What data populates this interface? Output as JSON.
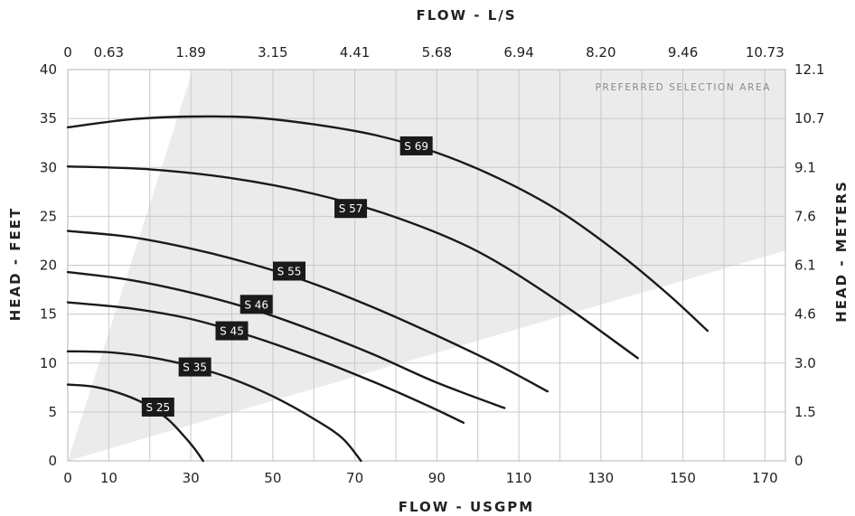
{
  "chart_data": {
    "type": "line",
    "title": "",
    "x_axis_bottom": {
      "label": "FLOW - USGPM",
      "range": [
        0,
        175
      ],
      "tick_values": [
        0,
        10,
        30,
        50,
        70,
        90,
        110,
        130,
        150,
        170
      ],
      "tick_labels": [
        "0",
        "10",
        "30",
        "50",
        "70",
        "90",
        "110",
        "130",
        "150",
        "170"
      ]
    },
    "x_axis_top": {
      "label": "FLOW - L/S",
      "tick_labels": [
        "0",
        "0.63",
        "1.89",
        "3.15",
        "4.41",
        "5.68",
        "6.94",
        "8.20",
        "9.46",
        "10.73"
      ]
    },
    "y_axis_left": {
      "label": "HEAD - FEET",
      "range": [
        0,
        40
      ],
      "tick_values": [
        0,
        5,
        10,
        15,
        20,
        25,
        30,
        35,
        40
      ],
      "tick_labels": [
        "0",
        "5",
        "10",
        "15",
        "20",
        "25",
        "30",
        "35",
        "40"
      ]
    },
    "y_axis_right": {
      "label": "HEAD - METERS",
      "tick_labels": [
        "0",
        "1.5",
        "3.0",
        "4.6",
        "6.1",
        "7.6",
        "9.1",
        "10.7",
        "12.1"
      ]
    },
    "grid": true,
    "region": {
      "label": "PREFERRED SELECTION AREA",
      "color": "#ebebeb",
      "polygon": [
        [
          0,
          0
        ],
        [
          30.5,
          40
        ],
        [
          175,
          40
        ],
        [
          175,
          21.5
        ]
      ]
    },
    "series": [
      {
        "name": "S 25",
        "label_at": [
          22,
          5.5
        ],
        "points": [
          [
            0,
            7.8
          ],
          [
            6,
            7.6
          ],
          [
            12,
            7
          ],
          [
            18,
            6
          ],
          [
            24,
            4.4
          ],
          [
            28,
            2.7
          ],
          [
            31,
            1.2
          ],
          [
            33,
            0
          ]
        ]
      },
      {
        "name": "S 35",
        "label_at": [
          31,
          9.6
        ],
        "points": [
          [
            0,
            11.2
          ],
          [
            10,
            11.1
          ],
          [
            20,
            10.6
          ],
          [
            30,
            9.7
          ],
          [
            40,
            8.4
          ],
          [
            50,
            6.6
          ],
          [
            60,
            4.3
          ],
          [
            67,
            2.3
          ],
          [
            71.5,
            0
          ]
        ]
      },
      {
        "name": "S 45",
        "label_at": [
          40,
          13.3
        ],
        "points": [
          [
            0,
            16.2
          ],
          [
            15,
            15.6
          ],
          [
            30,
            14.5
          ],
          [
            45,
            12.7
          ],
          [
            60,
            10.5
          ],
          [
            75,
            8
          ],
          [
            88,
            5.6
          ],
          [
            96.5,
            3.9
          ]
        ]
      },
      {
        "name": "S 46",
        "label_at": [
          46,
          16.0
        ],
        "points": [
          [
            0,
            19.3
          ],
          [
            15,
            18.5
          ],
          [
            30,
            17.2
          ],
          [
            45,
            15.5
          ],
          [
            60,
            13.3
          ],
          [
            75,
            10.8
          ],
          [
            90,
            8
          ],
          [
            106.5,
            5.4
          ]
        ]
      },
      {
        "name": "S 55",
        "label_at": [
          54,
          19.4
        ],
        "points": [
          [
            0,
            23.5
          ],
          [
            15,
            22.9
          ],
          [
            30,
            21.7
          ],
          [
            45,
            20.1
          ],
          [
            60,
            18.1
          ],
          [
            75,
            15.6
          ],
          [
            90,
            12.8
          ],
          [
            105,
            9.8
          ],
          [
            117,
            7.1
          ]
        ]
      },
      {
        "name": "S 57",
        "label_at": [
          69,
          25.8
        ],
        "points": [
          [
            0,
            30.1
          ],
          [
            20,
            29.8
          ],
          [
            40,
            28.9
          ],
          [
            60,
            27.3
          ],
          [
            80,
            24.9
          ],
          [
            100,
            21.4
          ],
          [
            120,
            16.2
          ],
          [
            139,
            10.5
          ]
        ]
      },
      {
        "name": "S 69",
        "label_at": [
          85,
          32.2
        ],
        "points": [
          [
            0,
            34.1
          ],
          [
            15,
            34.9
          ],
          [
            30,
            35.2
          ],
          [
            45,
            35.1
          ],
          [
            60,
            34.4
          ],
          [
            75,
            33.3
          ],
          [
            90,
            31.5
          ],
          [
            105,
            28.9
          ],
          [
            120,
            25.5
          ],
          [
            135,
            21
          ],
          [
            147,
            16.8
          ],
          [
            156,
            13.3
          ]
        ]
      }
    ],
    "colors": {
      "curve": "#1a1a1a",
      "badge_bg": "#1a1a1a",
      "badge_text": "#ffffff",
      "grid": "#c9c9c9",
      "region": "#ebebeb"
    }
  }
}
